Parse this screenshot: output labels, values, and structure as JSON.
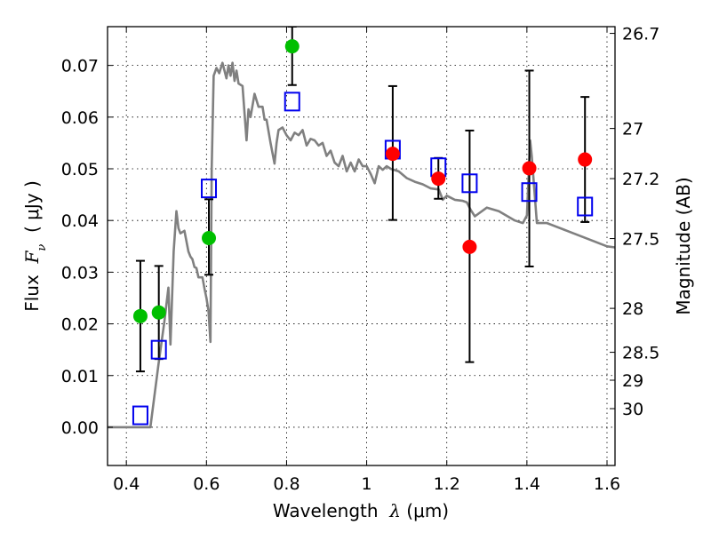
{
  "chart_data": {
    "type": "scatter",
    "title": "",
    "xlabel": "Wavelength  λ (μm)",
    "ylabel": "Flux  Fν  ( μJy )",
    "ylabel_parts": {
      "prefix": "Flux  ",
      "symbol": "F",
      "subscript": "ν",
      "unit": "  ( μJy )"
    },
    "xlabel_parts": {
      "prefix": "Wavelength  ",
      "symbol": "λ",
      "unit": " (μm)"
    },
    "y2label": "Magnitude (AB)",
    "xlim": [
      0.353,
      1.62
    ],
    "ylim": [
      -0.0074,
      0.0775
    ],
    "grid": true,
    "legend": "none",
    "x_ticks": [
      0.4,
      0.6,
      0.8,
      1.0,
      1.2,
      1.4,
      1.6
    ],
    "x_tick_labels": [
      "0.4",
      "0.6",
      "0.8",
      "1",
      "1.2",
      "1.4",
      "1.6"
    ],
    "y_ticks": [
      0.0,
      0.01,
      0.02,
      0.03,
      0.04,
      0.05,
      0.06,
      0.07
    ],
    "y_tick_labels": [
      "0.00",
      "0.01",
      "0.02",
      "0.03",
      "0.04",
      "0.05",
      "0.06",
      "0.07"
    ],
    "y2_ticks": [
      {
        "label": "26.7",
        "flux": 0.0762
      },
      {
        "label": "27",
        "flux": 0.0578
      },
      {
        "label": "27.2",
        "flux": 0.0481
      },
      {
        "label": "27.5",
        "flux": 0.0365
      },
      {
        "label": "28",
        "flux": 0.023
      },
      {
        "label": "28.5",
        "flux": 0.0145
      },
      {
        "label": "29",
        "flux": 0.0091
      },
      {
        "label": "30",
        "flux": 0.0036
      }
    ],
    "series": [
      {
        "name": "model-spectrum",
        "kind": "line",
        "color": "#808080",
        "x": [
          0.353,
          0.4,
          0.46,
          0.47,
          0.48,
          0.495,
          0.505,
          0.51,
          0.518,
          0.525,
          0.53,
          0.535,
          0.545,
          0.555,
          0.56,
          0.565,
          0.57,
          0.575,
          0.58,
          0.59,
          0.595,
          0.6,
          0.605,
          0.61,
          0.613,
          0.618,
          0.625,
          0.632,
          0.64,
          0.645,
          0.65,
          0.655,
          0.66,
          0.665,
          0.67,
          0.675,
          0.68,
          0.69,
          0.7,
          0.705,
          0.71,
          0.72,
          0.73,
          0.74,
          0.745,
          0.75,
          0.76,
          0.77,
          0.775,
          0.78,
          0.79,
          0.8,
          0.81,
          0.82,
          0.83,
          0.84,
          0.85,
          0.86,
          0.87,
          0.88,
          0.89,
          0.9,
          0.91,
          0.92,
          0.93,
          0.94,
          0.95,
          0.96,
          0.97,
          0.98,
          0.99,
          1.0,
          1.01,
          1.02,
          1.03,
          1.04,
          1.05,
          1.06,
          1.08,
          1.1,
          1.12,
          1.14,
          1.16,
          1.18,
          1.19,
          1.2,
          1.22,
          1.24,
          1.25,
          1.26,
          1.27,
          1.3,
          1.33,
          1.37,
          1.39,
          1.4,
          1.408,
          1.412,
          1.425,
          1.45,
          1.5,
          1.55,
          1.6,
          1.62
        ],
        "y": [
          0.0,
          0.0,
          0.0,
          0.006,
          0.012,
          0.0205,
          0.027,
          0.016,
          0.034,
          0.0418,
          0.0385,
          0.0375,
          0.038,
          0.034,
          0.033,
          0.0325,
          0.031,
          0.0308,
          0.029,
          0.029,
          0.0268,
          0.025,
          0.0225,
          0.0165,
          0.05,
          0.068,
          0.0695,
          0.0685,
          0.0705,
          0.069,
          0.0675,
          0.07,
          0.068,
          0.0705,
          0.067,
          0.069,
          0.0665,
          0.066,
          0.0555,
          0.0615,
          0.06,
          0.0645,
          0.062,
          0.062,
          0.0595,
          0.0595,
          0.055,
          0.051,
          0.055,
          0.0575,
          0.058,
          0.0565,
          0.0555,
          0.057,
          0.0565,
          0.0575,
          0.0545,
          0.0558,
          0.0555,
          0.0545,
          0.055,
          0.0525,
          0.0535,
          0.0512,
          0.0505,
          0.0525,
          0.0495,
          0.0512,
          0.0495,
          0.0518,
          0.0505,
          0.0505,
          0.049,
          0.0472,
          0.0505,
          0.0498,
          0.0505,
          0.05,
          0.0495,
          0.0482,
          0.0475,
          0.047,
          0.0462,
          0.046,
          0.044,
          0.0448,
          0.044,
          0.0438,
          0.0435,
          0.042,
          0.0408,
          0.0425,
          0.0418,
          0.04,
          0.0395,
          0.041,
          0.0555,
          0.0525,
          0.0395,
          0.0395,
          0.038,
          0.0365,
          0.035,
          0.0348
        ]
      },
      {
        "name": "green-detections",
        "kind": "points",
        "marker": "circle",
        "color": "#00bf00",
        "points": [
          {
            "x": 0.435,
            "y": 0.0215,
            "err_low": 0.0108,
            "err_high": 0.0322
          },
          {
            "x": 0.481,
            "y": 0.0222,
            "err_low": 0.0132,
            "err_high": 0.0312
          },
          {
            "x": 0.606,
            "y": 0.0366,
            "err_low": 0.0295,
            "err_high": 0.0441
          },
          {
            "x": 0.814,
            "y": 0.0737,
            "err_low": 0.0662,
            "err_high": 0.0775
          }
        ]
      },
      {
        "name": "red-detections",
        "kind": "points",
        "marker": "circle",
        "color": "#ff0000",
        "points": [
          {
            "x": 1.065,
            "y": 0.0529,
            "err_low": 0.0401,
            "err_high": 0.066
          },
          {
            "x": 1.179,
            "y": 0.0481,
            "err_low": 0.0442,
            "err_high": 0.0521
          },
          {
            "x": 1.257,
            "y": 0.0349,
            "err_low": 0.0126,
            "err_high": 0.0574
          },
          {
            "x": 1.406,
            "y": 0.0501,
            "err_low": 0.0311,
            "err_high": 0.069
          },
          {
            "x": 1.545,
            "y": 0.0518,
            "err_low": 0.0397,
            "err_high": 0.0639
          }
        ]
      },
      {
        "name": "model-band-fluxes",
        "kind": "points",
        "marker": "open-square",
        "color": "#0000ee",
        "points": [
          {
            "x": 0.435,
            "y": 0.0023
          },
          {
            "x": 0.481,
            "y": 0.015
          },
          {
            "x": 0.606,
            "y": 0.0462
          },
          {
            "x": 0.814,
            "y": 0.063
          },
          {
            "x": 1.065,
            "y": 0.0537
          },
          {
            "x": 1.179,
            "y": 0.0503
          },
          {
            "x": 1.257,
            "y": 0.0472
          },
          {
            "x": 1.406,
            "y": 0.0455
          },
          {
            "x": 1.545,
            "y": 0.0427
          }
        ]
      }
    ]
  }
}
